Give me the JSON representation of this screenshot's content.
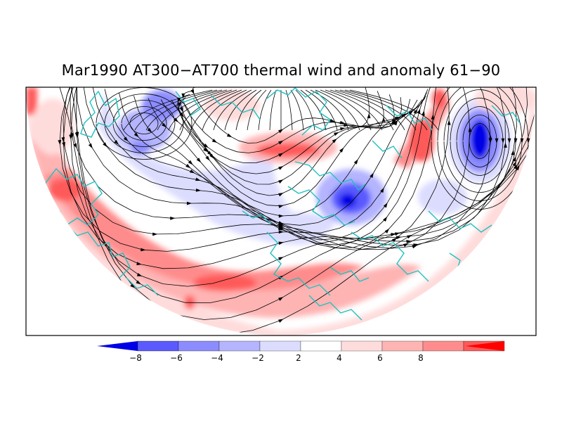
{
  "figure": {
    "title": "Mar1990 AT300−AT700 thermal wind and anomaly 61−90"
  },
  "colorbar": {
    "boundaries": [
      -8,
      -6,
      -4,
      -2,
      2,
      4,
      6,
      8
    ],
    "tick_labels": [
      "−8",
      "−6",
      "−4",
      "−2",
      "2",
      "4",
      "6",
      "8"
    ],
    "colors": [
      "#0000e6",
      "#5a5aff",
      "#8c8cff",
      "#b4b4ff",
      "#dcdcff",
      "#ffffff",
      "#ffdcdc",
      "#ffb4b4",
      "#ff8c8c",
      "#ff5a5a",
      "#ff0000"
    ]
  },
  "map": {
    "coastline_color": "#20c0c0",
    "streamline_color": "#000000"
  }
}
